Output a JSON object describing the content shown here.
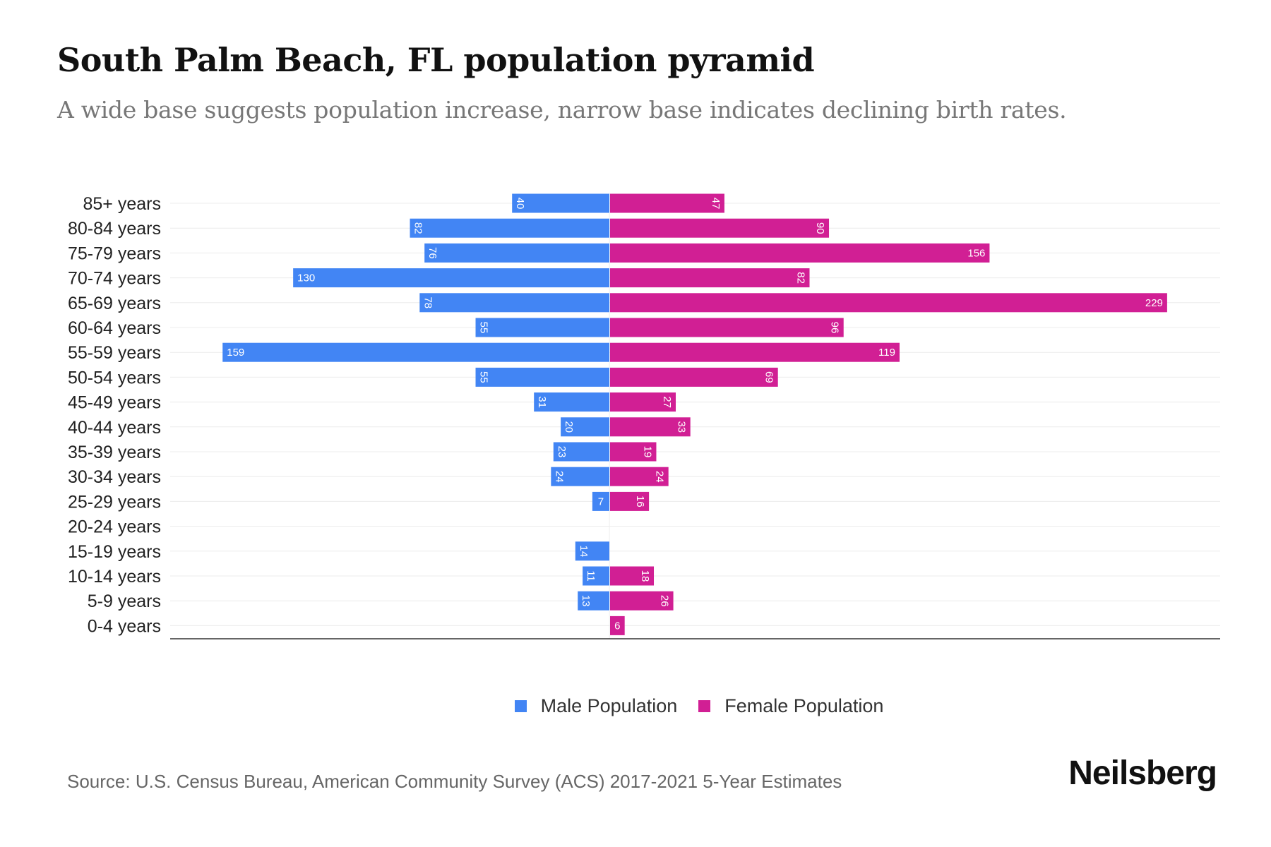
{
  "chart_data": {
    "type": "bar",
    "orientation": "horizontal-pyramid",
    "title": "South Palm Beach, FL population pyramid",
    "subtitle": "A wide base suggests population increase, narrow base indicates declining birth rates.",
    "categories": [
      "85+ years",
      "80-84 years",
      "75-79 years",
      "70-74 years",
      "65-69 years",
      "60-64 years",
      "55-59 years",
      "50-54 years",
      "45-49 years",
      "40-44 years",
      "35-39 years",
      "30-34 years",
      "25-29 years",
      "20-24 years",
      "15-19 years",
      "10-14 years",
      "5-9 years",
      "0-4 years"
    ],
    "series": [
      {
        "name": "Male Population",
        "color": "#4285f4",
        "values": [
          40,
          82,
          76,
          130,
          78,
          55,
          159,
          55,
          31,
          20,
          23,
          24,
          7,
          0,
          14,
          11,
          13,
          0
        ]
      },
      {
        "name": "Female Population",
        "color": "#d11f94",
        "values": [
          47,
          90,
          156,
          82,
          229,
          96,
          119,
          69,
          27,
          33,
          19,
          24,
          16,
          0,
          0,
          18,
          26,
          6
        ]
      }
    ],
    "xlim": [
      -180,
      250
    ],
    "grid": true,
    "legend_position": "bottom"
  },
  "source": "Source: U.S. Census Bureau, American Community Survey (ACS) 2017-2021 5-Year Estimates",
  "brand": "Neilsberg"
}
